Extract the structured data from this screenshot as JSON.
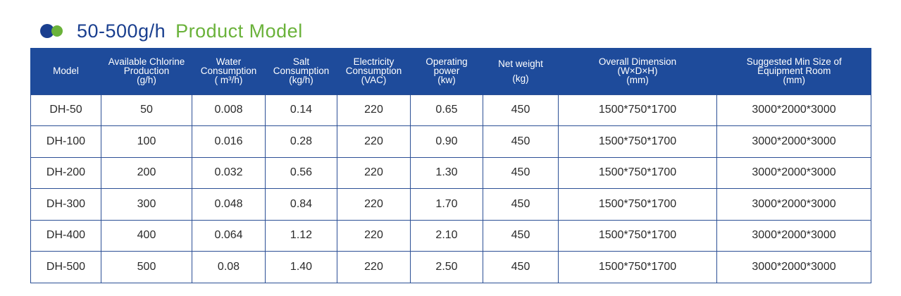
{
  "title": {
    "range": "50-500g/h",
    "main": "Product Model"
  },
  "colors": {
    "header_bg": "#1e4b9b",
    "accent_blue": "#1a3f8f",
    "accent_green": "#6ab23a"
  },
  "table": {
    "headers": [
      [
        "Model"
      ],
      [
        "Available Chlorine",
        "Production",
        "(g/h)"
      ],
      [
        "Water",
        "Consumption",
        "( m³/h)"
      ],
      [
        "Salt",
        "Consumption",
        "(kg/h)"
      ],
      [
        "Electricity",
        "Consumption",
        "(VAC)"
      ],
      [
        "Operating",
        "power",
        "(kw)"
      ],
      [
        "Net weight",
        "(kg)"
      ],
      [
        "Overall Dimension",
        "(W×D×H)",
        "(mm)"
      ],
      [
        "Suggested Min Size of",
        "Equipment Room",
        "(mm)"
      ]
    ],
    "rows": [
      [
        "DH-50",
        "50",
        "0.008",
        "0.14",
        "220",
        "0.65",
        "450",
        "1500*750*1700",
        "3000*2000*3000"
      ],
      [
        "DH-100",
        "100",
        "0.016",
        "0.28",
        "220",
        "0.90",
        "450",
        "1500*750*1700",
        "3000*2000*3000"
      ],
      [
        "DH-200",
        "200",
        "0.032",
        "0.56",
        "220",
        "1.30",
        "450",
        "1500*750*1700",
        "3000*2000*3000"
      ],
      [
        "DH-300",
        "300",
        "0.048",
        "0.84",
        "220",
        "1.70",
        "450",
        "1500*750*1700",
        "3000*2000*3000"
      ],
      [
        "DH-400",
        "400",
        "0.064",
        "1.12",
        "220",
        "2.10",
        "450",
        "1500*750*1700",
        "3000*2000*3000"
      ],
      [
        "DH-500",
        "500",
        "0.08",
        "1.40",
        "220",
        "2.50",
        "450",
        "1500*750*1700",
        "3000*2000*3000"
      ]
    ]
  }
}
